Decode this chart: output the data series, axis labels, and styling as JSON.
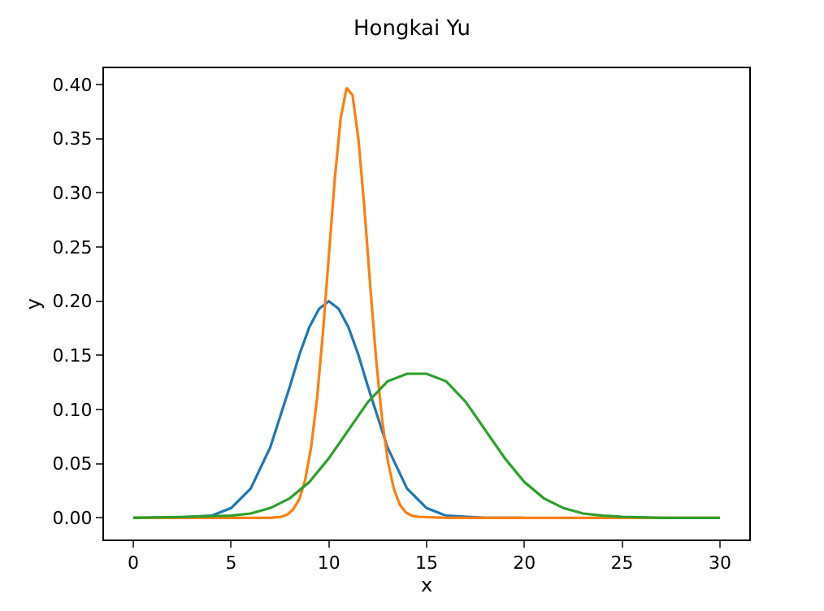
{
  "chart_data": {
    "type": "line",
    "title": "Hongkai Yu",
    "xlabel": "x",
    "ylabel": "y",
    "xlim": [
      -1.5,
      31.5
    ],
    "ylim": [
      -0.02,
      0.415
    ],
    "xticks": [
      0,
      5,
      10,
      15,
      20,
      25,
      30
    ],
    "yticks": [
      {
        "value": 0,
        "label": "0.00"
      },
      {
        "value": 0.05,
        "label": "0.05"
      },
      {
        "value": 0.1,
        "label": "0.10"
      },
      {
        "value": 0.15,
        "label": "0.15"
      },
      {
        "value": 0.2,
        "label": "0.20"
      },
      {
        "value": 0.25,
        "label": "0.25"
      },
      {
        "value": 0.3,
        "label": "0.30"
      },
      {
        "value": 0.35,
        "label": "0.35"
      },
      {
        "value": 0.4,
        "label": "0.40"
      }
    ],
    "legend": false,
    "marker": "none",
    "line_style": "solid",
    "series": [
      {
        "color": "#1f77b4",
        "x": [
          0,
          2,
          4,
          5,
          6,
          7,
          8,
          8.5,
          9,
          9.5,
          10,
          10.5,
          11,
          11.5,
          12,
          13,
          14,
          15,
          16,
          18,
          20
        ],
        "values": [
          0,
          0,
          0.002,
          0.009,
          0.027,
          0.065,
          0.121,
          0.151,
          0.176,
          0.193,
          0.2,
          0.193,
          0.176,
          0.151,
          0.121,
          0.065,
          0.027,
          0.009,
          0.002,
          0,
          0
        ]
      },
      {
        "color": "#ff7f0e",
        "x": [
          0,
          7,
          7.576,
          7.879,
          8.182,
          8.485,
          8.788,
          9.091,
          9.394,
          9.697,
          10.0,
          10.303,
          10.606,
          10.909,
          11.212,
          11.515,
          11.818,
          12.121,
          12.424,
          12.727,
          13.03,
          13.333,
          13.636,
          13.939,
          14.242,
          14.545,
          16,
          30
        ],
        "values": [
          0,
          0,
          0.001,
          0.003,
          0.008,
          0.017,
          0.035,
          0.065,
          0.11,
          0.171,
          0.242,
          0.313,
          0.369,
          0.397,
          0.39,
          0.349,
          0.286,
          0.213,
          0.145,
          0.09,
          0.051,
          0.026,
          0.012,
          0.005,
          0.002,
          0.001,
          0,
          0
        ]
      },
      {
        "color": "#2ca02c",
        "x": [
          0,
          3,
          5,
          6,
          7,
          8,
          9,
          10,
          11,
          12,
          13,
          14,
          15,
          16,
          17,
          18,
          19,
          20,
          21,
          22,
          23,
          24,
          25,
          27,
          30
        ],
        "values": [
          0,
          0.001,
          0.002,
          0.004,
          0.009,
          0.018,
          0.033,
          0.055,
          0.081,
          0.107,
          0.126,
          0.133,
          0.133,
          0.126,
          0.107,
          0.081,
          0.055,
          0.033,
          0.018,
          0.009,
          0.004,
          0.002,
          0.001,
          0,
          0
        ]
      }
    ]
  }
}
